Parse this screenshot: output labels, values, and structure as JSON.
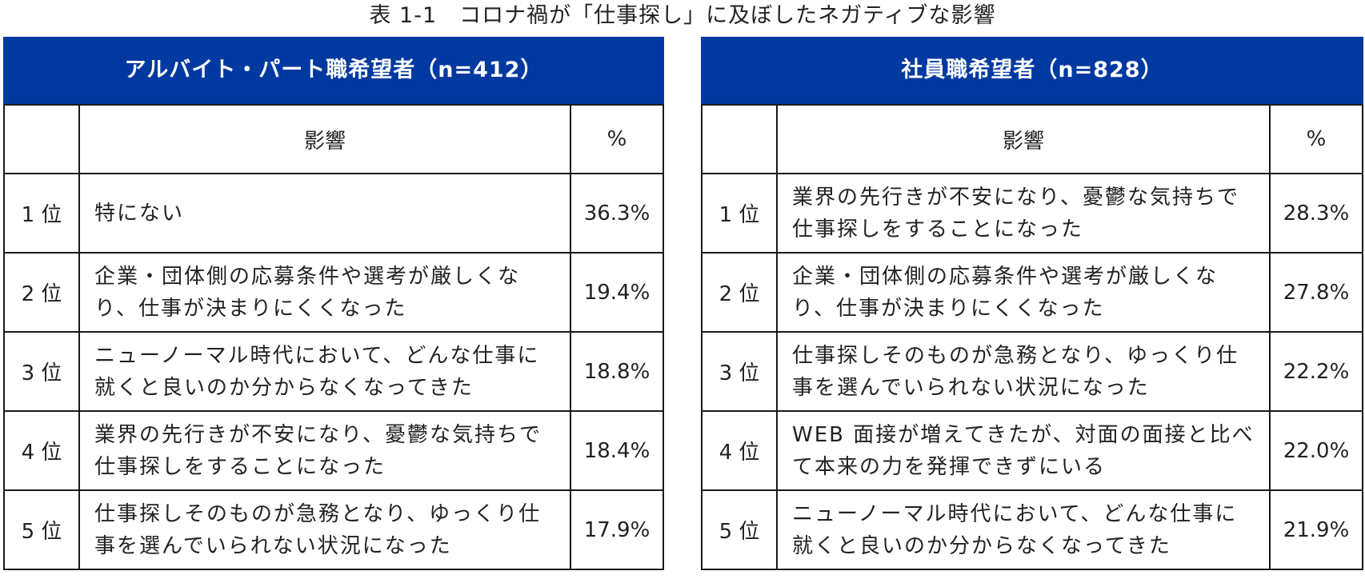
{
  "caption": "表 1-1　コロナ禍が「仕事探し」に及ぼしたネガティブな影響",
  "headers": {
    "rank": "",
    "impact": "影響",
    "percent": "%"
  },
  "panels": [
    {
      "title": "アルバイト・パート職希望者（n=412）",
      "rows": [
        {
          "rank": "1 位",
          "impact": "特にない",
          "percent": "36.3%"
        },
        {
          "rank": "2 位",
          "impact": "企業・団体側の応募条件や選考が厳しくなり、仕事が決まりにくくなった",
          "percent": "19.4%"
        },
        {
          "rank": "3 位",
          "impact": "ニューノーマル時代において、どんな仕事に就くと良いのか分からなくなってきた",
          "percent": "18.8%"
        },
        {
          "rank": "4 位",
          "impact": "業界の先行きが不安になり、憂鬱な気持ちで仕事探しをすることになった",
          "percent": "18.4%"
        },
        {
          "rank": "5 位",
          "impact": "仕事探しそのものが急務となり、ゆっくり仕事を選んでいられない状況になった",
          "percent": "17.9%"
        }
      ]
    },
    {
      "title": "社員職希望者（n=828）",
      "rows": [
        {
          "rank": "1 位",
          "impact": "業界の先行きが不安になり、憂鬱な気持ちで仕事探しをすることになった",
          "percent": "28.3%"
        },
        {
          "rank": "2 位",
          "impact": "企業・団体側の応募条件や選考が厳しくなり、仕事が決まりにくくなった",
          "percent": "27.8%"
        },
        {
          "rank": "3 位",
          "impact": "仕事探しそのものが急務となり、ゆっくり仕事を選んでいられない状況になった",
          "percent": "22.2%"
        },
        {
          "rank": "4 位",
          "impact": "WEB 面接が増えてきたが、対面の面接と比べて本来の力を発揮できずにいる",
          "percent": "22.0%"
        },
        {
          "rank": "5 位",
          "impact": "ニューノーマル時代において、どんな仕事に就くと良いのか分からなくなってきた",
          "percent": "21.9%"
        }
      ]
    }
  ]
}
